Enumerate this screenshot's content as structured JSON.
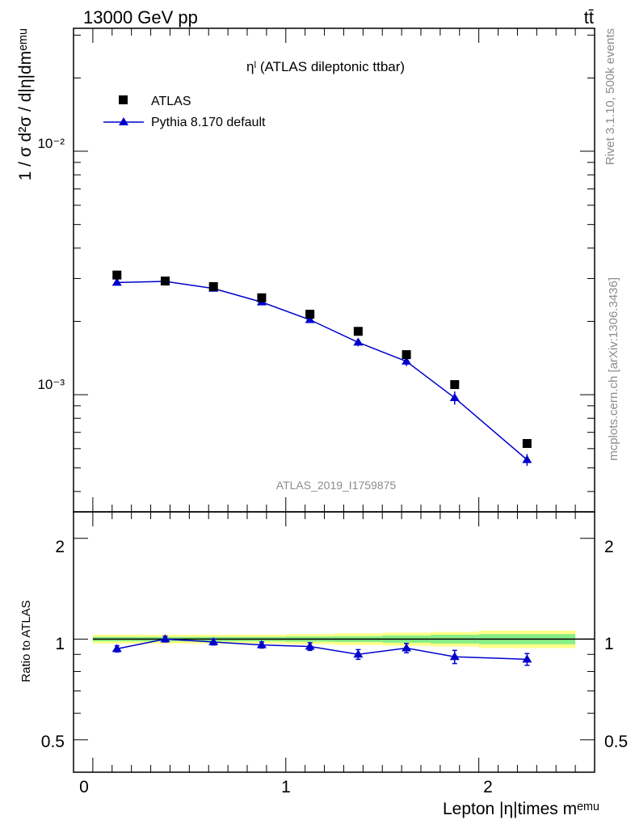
{
  "header": {
    "energy_label": "13000 GeV pp",
    "process_label": "tt̄"
  },
  "side": {
    "rivet_label": "Rivet 3.1.10,  500k events",
    "source_label": "mcplots.cern.ch [arXiv:1306.3436]"
  },
  "chart_data": [
    {
      "type": "scatter",
      "title": "ηˡ (ATLAS dileptonic ttbar)",
      "watermark": "ATLAS_2019_I1759875",
      "ylabel": "1 / σ d²σ / d|η|dmᵉᵐᵘ",
      "xlabel": "Lepton |η|times mᵉᵐᵘ",
      "yscale": "log",
      "xlim": [
        -0.1,
        2.6
      ],
      "ylim": [
        0.00033,
        0.032
      ],
      "ytick_labels": [
        "10⁻²",
        "10⁻³"
      ],
      "legend_position": "top-left",
      "series": [
        {
          "name": "ATLAS",
          "marker": "square",
          "color": "#000000",
          "x": [
            0.125,
            0.375,
            0.625,
            0.875,
            1.125,
            1.375,
            1.625,
            1.875,
            2.25
          ],
          "y": [
            0.0031,
            0.00293,
            0.00278,
            0.0025,
            0.00214,
            0.00182,
            0.00146,
            0.0011,
            0.00063
          ]
        },
        {
          "name": "Pythia 8.170 default",
          "marker": "triangle",
          "color": "#0000cc",
          "x": [
            0.125,
            0.375,
            0.625,
            0.875,
            1.125,
            1.375,
            1.625,
            1.875,
            2.25
          ],
          "y": [
            0.00289,
            0.00292,
            0.00273,
            0.0024,
            0.00203,
            0.00164,
            0.00137,
            0.00097,
            0.00054
          ],
          "yerr": [
            5e-05,
            5e-05,
            5e-05,
            6e-05,
            6e-05,
            6e-05,
            6e-05,
            6e-05,
            3e-05
          ]
        }
      ]
    },
    {
      "type": "scatter",
      "ylabel": "Ratio to ATLAS",
      "ylim": [
        0.4,
        2.4
      ],
      "ytick_labels": [
        "0.5",
        "1",
        "2"
      ],
      "xtick_labels": [
        "0",
        "1",
        "2"
      ],
      "band_colors": [
        "#ffff88",
        "#88ee88"
      ],
      "series": [
        {
          "name": "Pythia 8.170 default",
          "color": "#0000cc",
          "x": [
            0.125,
            0.375,
            0.625,
            0.875,
            1.125,
            1.375,
            1.625,
            1.875,
            2.25
          ],
          "y": [
            0.935,
            1.0,
            0.98,
            0.96,
            0.95,
            0.9,
            0.94,
            0.885,
            0.87
          ],
          "yerr": [
            0.02,
            0.02,
            0.02,
            0.02,
            0.025,
            0.03,
            0.03,
            0.04,
            0.035
          ]
        }
      ],
      "reference_band": {
        "x_edges": [
          0.0,
          0.25,
          0.5,
          0.75,
          1.0,
          1.25,
          1.5,
          1.75,
          2.0,
          2.5
        ],
        "outer_halfwidth": [
          0.03,
          0.03,
          0.03,
          0.03,
          0.035,
          0.04,
          0.045,
          0.05,
          0.06
        ],
        "inner_halfwidth": [
          0.015,
          0.015,
          0.015,
          0.015,
          0.018,
          0.02,
          0.025,
          0.03,
          0.035
        ]
      }
    }
  ]
}
